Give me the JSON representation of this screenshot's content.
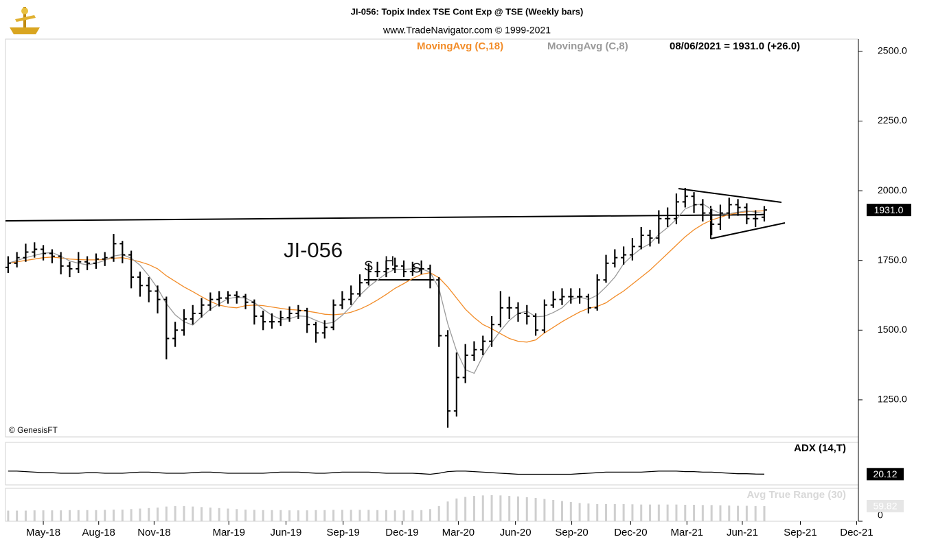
{
  "chart_data": [
    {
      "type": "ohlc",
      "title": "JI-056:  Topix Index TSE Cont Exp @ TSE  (Weekly bars)",
      "subtitle": "www.TradeNavigator.com © 1999-2021",
      "info": "08/06/2021 = 1931.0 (+26.0)",
      "annotations": [
        "JI-056",
        "S",
        "H",
        "S"
      ],
      "credit": "© GenesisFT",
      "last_label": "1931.0",
      "color": "#000000",
      "xlim": [
        -0.3,
        96.7
      ],
      "xticks": [
        {
          "value": 4.0,
          "label": "May-18"
        },
        {
          "value": 10.3,
          "label": "Aug-18"
        },
        {
          "value": 16.6,
          "label": "Nov-18"
        },
        {
          "value": 25.1,
          "label": "Mar-19"
        },
        {
          "value": 31.6,
          "label": "Jun-19"
        },
        {
          "value": 38.1,
          "label": "Sep-19"
        },
        {
          "value": 44.8,
          "label": "Dec-19"
        },
        {
          "value": 51.2,
          "label": "Mar-20"
        },
        {
          "value": 57.7,
          "label": "Jun-20"
        },
        {
          "value": 64.1,
          "label": "Sep-20"
        },
        {
          "value": 70.8,
          "label": "Dec-20"
        },
        {
          "value": 77.2,
          "label": "Mar-21"
        },
        {
          "value": 83.5,
          "label": "Jun-21"
        },
        {
          "value": 90.1,
          "label": "Sep-21"
        },
        {
          "value": 96.5,
          "label": "Dec-21"
        }
      ],
      "ylim": [
        1117,
        2544
      ],
      "yticks": [
        {
          "value": 1250,
          "label": "1250.0"
        },
        {
          "value": 1500,
          "label": "1500.0"
        },
        {
          "value": 1750,
          "label": "1750.0"
        },
        {
          "value": 2000,
          "label": "2000.0"
        },
        {
          "value": 2250,
          "label": "2250.0"
        },
        {
          "value": 2500,
          "label": "2500.0"
        }
      ],
      "open": [
        1725,
        1740,
        1760,
        1780,
        1790,
        1775,
        1765,
        1730,
        1720,
        1745,
        1740,
        1755,
        1760,
        1810,
        1770,
        1690,
        1660,
        1640,
        1610,
        1470,
        1500,
        1540,
        1560,
        1590,
        1610,
        1615,
        1625,
        1620,
        1600,
        1550,
        1530,
        1530,
        1545,
        1560,
        1570,
        1520,
        1490,
        1510,
        1590,
        1610,
        1630,
        1670,
        1710,
        1710,
        1720,
        1730,
        1710,
        1720,
        1720,
        1680,
        1480,
        1210,
        1330,
        1410,
        1430,
        1460,
        1520,
        1580,
        1580,
        1560,
        1550,
        1500,
        1590,
        1610,
        1620,
        1620,
        1620,
        1580,
        1680,
        1740,
        1760,
        1770,
        1800,
        1840,
        1830,
        1900,
        1900,
        1960,
        1980,
        1950,
        1920,
        1880,
        1920,
        1950,
        1940,
        1900,
        1905
      ],
      "high": [
        1765,
        1780,
        1810,
        1815,
        1805,
        1790,
        1780,
        1745,
        1780,
        1765,
        1775,
        1780,
        1845,
        1820,
        1785,
        1710,
        1690,
        1660,
        1620,
        1530,
        1575,
        1590,
        1615,
        1635,
        1640,
        1640,
        1640,
        1630,
        1610,
        1570,
        1560,
        1570,
        1585,
        1590,
        1580,
        1530,
        1535,
        1610,
        1640,
        1660,
        1700,
        1740,
        1745,
        1750,
        1760,
        1750,
        1745,
        1750,
        1735,
        1690,
        1500,
        1420,
        1450,
        1460,
        1480,
        1550,
        1640,
        1620,
        1600,
        1590,
        1560,
        1610,
        1640,
        1650,
        1650,
        1650,
        1630,
        1700,
        1770,
        1790,
        1800,
        1830,
        1870,
        1860,
        1930,
        1940,
        1990,
        2010,
        1995,
        1970,
        1935,
        1950,
        1975,
        1970,
        1955,
        1930,
        1945
      ],
      "low": [
        1705,
        1725,
        1745,
        1760,
        1750,
        1740,
        1700,
        1690,
        1705,
        1715,
        1720,
        1730,
        1745,
        1740,
        1650,
        1620,
        1600,
        1560,
        1395,
        1440,
        1480,
        1520,
        1545,
        1570,
        1585,
        1595,
        1595,
        1575,
        1520,
        1500,
        1505,
        1515,
        1530,
        1540,
        1490,
        1455,
        1470,
        1500,
        1575,
        1590,
        1620,
        1660,
        1690,
        1690,
        1705,
        1690,
        1695,
        1700,
        1650,
        1440,
        1150,
        1190,
        1310,
        1390,
        1410,
        1440,
        1510,
        1540,
        1530,
        1520,
        1480,
        1490,
        1580,
        1590,
        1595,
        1595,
        1560,
        1570,
        1670,
        1725,
        1735,
        1750,
        1790,
        1800,
        1810,
        1870,
        1880,
        1940,
        1920,
        1890,
        1840,
        1860,
        1900,
        1910,
        1880,
        1870,
        1890
      ],
      "close": [
        1740,
        1760,
        1780,
        1790,
        1775,
        1765,
        1730,
        1720,
        1745,
        1740,
        1755,
        1760,
        1810,
        1770,
        1690,
        1660,
        1640,
        1610,
        1470,
        1500,
        1540,
        1560,
        1590,
        1610,
        1615,
        1625,
        1620,
        1600,
        1550,
        1530,
        1530,
        1545,
        1560,
        1570,
        1520,
        1490,
        1510,
        1590,
        1610,
        1630,
        1670,
        1710,
        1710,
        1720,
        1730,
        1710,
        1720,
        1720,
        1680,
        1480,
        1210,
        1330,
        1410,
        1430,
        1460,
        1520,
        1580,
        1580,
        1560,
        1550,
        1500,
        1590,
        1610,
        1620,
        1620,
        1620,
        1580,
        1680,
        1740,
        1760,
        1770,
        1800,
        1840,
        1830,
        1900,
        1900,
        1960,
        1980,
        1950,
        1920,
        1880,
        1920,
        1950,
        1940,
        1900,
        1900,
        1931
      ],
      "series": [
        {
          "name": "MovingAvg (C,18)",
          "color": "#f28c28",
          "values": [
            1740,
            1745,
            1750,
            1755,
            1760,
            1762,
            1759,
            1755,
            1753,
            1752,
            1752,
            1753,
            1758,
            1760,
            1753,
            1745,
            1735,
            1720,
            1695,
            1675,
            1655,
            1638,
            1620,
            1603,
            1590,
            1583,
            1580,
            1588,
            1590,
            1588,
            1583,
            1578,
            1574,
            1572,
            1568,
            1563,
            1557,
            1555,
            1558,
            1564,
            1575,
            1590,
            1608,
            1628,
            1650,
            1667,
            1685,
            1700,
            1706,
            1688,
            1655,
            1615,
            1575,
            1545,
            1520,
            1505,
            1487,
            1470,
            1460,
            1457,
            1465,
            1490,
            1510,
            1530,
            1548,
            1565,
            1578,
            1585,
            1598,
            1620,
            1640,
            1665,
            1690,
            1715,
            1745,
            1775,
            1805,
            1835,
            1860,
            1880,
            1895,
            1905,
            1915,
            1920,
            1925,
            1927,
            1928
          ]
        },
        {
          "name": "MovingAvg (C,8)",
          "color": "#9a9a9a",
          "values": [
            1740,
            1750,
            1760,
            1768,
            1776,
            1778,
            1765,
            1748,
            1740,
            1734,
            1740,
            1750,
            1766,
            1771,
            1758,
            1733,
            1695,
            1650,
            1595,
            1555,
            1530,
            1518,
            1548,
            1575,
            1594,
            1613,
            1618,
            1615,
            1599,
            1575,
            1553,
            1539,
            1541,
            1551,
            1549,
            1535,
            1523,
            1528,
            1553,
            1585,
            1625,
            1655,
            1680,
            1703,
            1718,
            1718,
            1720,
            1720,
            1708,
            1650,
            1523,
            1425,
            1358,
            1345,
            1408,
            1455,
            1498,
            1535,
            1560,
            1568,
            1548,
            1550,
            1563,
            1580,
            1610,
            1618,
            1610,
            1625,
            1655,
            1690,
            1738,
            1768,
            1793,
            1810,
            1843,
            1868,
            1898,
            1935,
            1948,
            1953,
            1933,
            1918,
            1918,
            1923,
            1928,
            1923,
            1918
          ]
        }
      ]
    },
    {
      "type": "line",
      "title": "ADX (14,T)",
      "color": "#000000",
      "ylim": [
        10,
        50
      ],
      "last_label": "20.12",
      "values": [
        23,
        23,
        22.5,
        22,
        21.5,
        21.5,
        21,
        21,
        21,
        21.5,
        21.5,
        21,
        21,
        21,
        21.5,
        22,
        22,
        21.5,
        21,
        21,
        21,
        21.5,
        22,
        22,
        21.5,
        21,
        21,
        21,
        21,
        21,
        21.5,
        22,
        22,
        22,
        21.5,
        21,
        21,
        21.5,
        22,
        22,
        22,
        22,
        21.5,
        21,
        21,
        21,
        21,
        20.5,
        20,
        21,
        22.5,
        23,
        23,
        22.5,
        22,
        21.5,
        21,
        20.5,
        20,
        20,
        20,
        20,
        20,
        20,
        20,
        20.5,
        21,
        21.5,
        22,
        22,
        22,
        22,
        22,
        22.5,
        23,
        23,
        23,
        22.5,
        22.5,
        22,
        22,
        21.5,
        21,
        20.5,
        20.5,
        20.2,
        20.12
      ]
    },
    {
      "type": "bar",
      "title": "Avg True Range (30)",
      "color": "#cfcfcf",
      "ylim": [
        0,
        130
      ],
      "yticks": [
        0
      ],
      "last_label": "59.82",
      "values": [
        42,
        42,
        42,
        43,
        43,
        43,
        43,
        44,
        44,
        44,
        44,
        45,
        46,
        46,
        48,
        50,
        52,
        54,
        58,
        60,
        60,
        58,
        56,
        54,
        52,
        50,
        48,
        46,
        45,
        44,
        44,
        44,
        43,
        43,
        43,
        44,
        44,
        45,
        45,
        45,
        45,
        45,
        44,
        44,
        43,
        43,
        43,
        44,
        48,
        60,
        78,
        90,
        96,
        100,
        102,
        103,
        102,
        100,
        98,
        95,
        92,
        88,
        84,
        80,
        76,
        72,
        70,
        68,
        68,
        68,
        68,
        67,
        66,
        66,
        66,
        66,
        66,
        65,
        65,
        64,
        64,
        63,
        62,
        61,
        61,
        60,
        59.82
      ]
    }
  ]
}
